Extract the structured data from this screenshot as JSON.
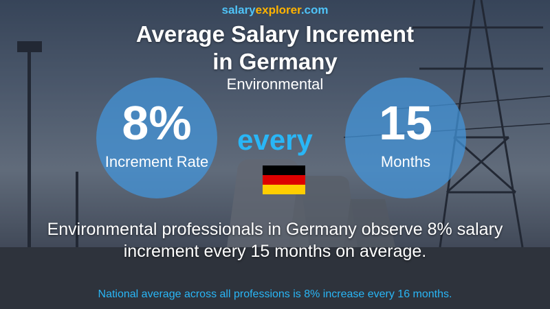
{
  "brand": {
    "part1": "salary",
    "part2": "explorer",
    "part3": ".com"
  },
  "title": {
    "line1": "Average Salary Increment",
    "line2": "in Germany"
  },
  "subtitle": "Environmental",
  "left_circle": {
    "value": "8%",
    "label": "Increment Rate"
  },
  "connector": "every",
  "right_circle": {
    "value": "15",
    "label": "Months"
  },
  "flag": {
    "country": "Germany",
    "colors": [
      "#000000",
      "#dd0000",
      "#ffce00"
    ]
  },
  "description": {
    "line1": "Environmental professionals in Germany observe 8% salary",
    "line2": "increment every 15 months on average."
  },
  "footer": "National average across all professions is 8% increase every 16 months.",
  "colors": {
    "circle": "#4296dc",
    "accent": "#29b6f6",
    "brand_orange": "#ffb300"
  }
}
